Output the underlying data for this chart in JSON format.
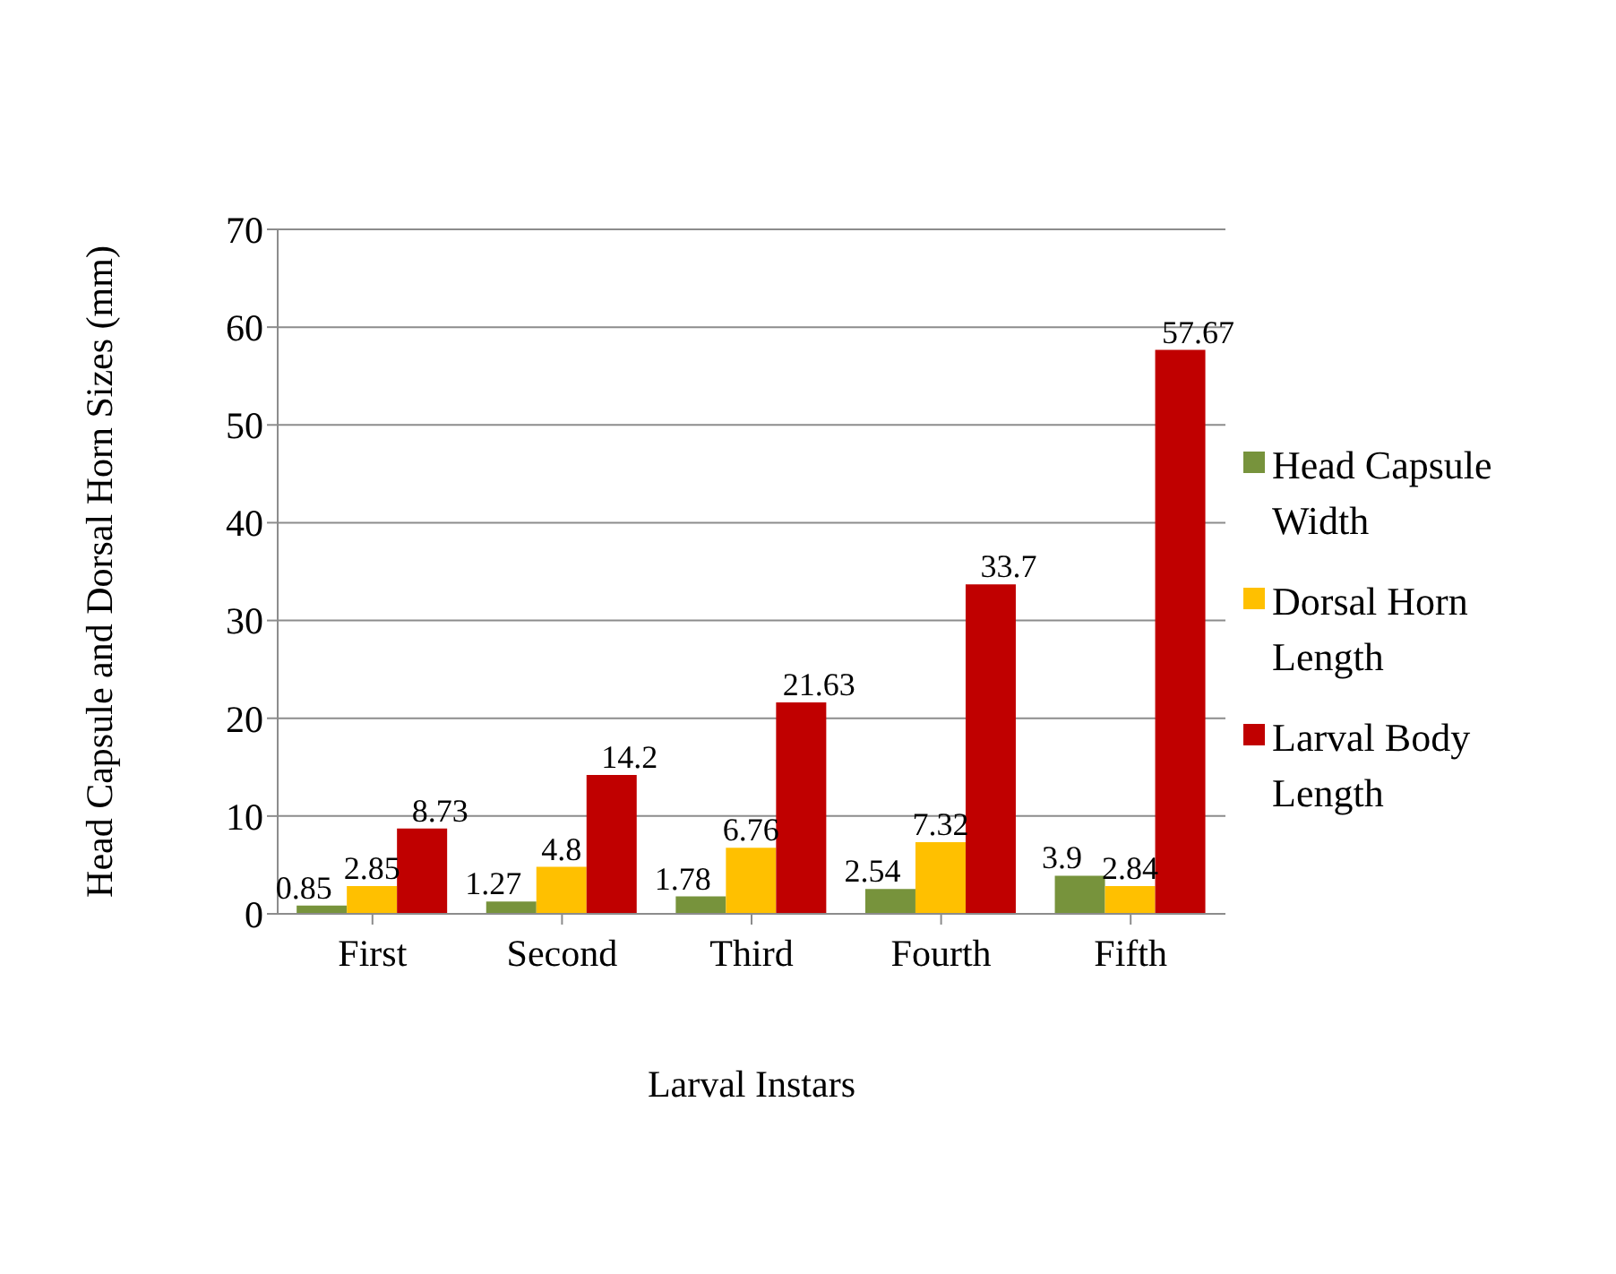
{
  "chart_data": {
    "type": "bar",
    "xlabel": "Larval  Instars",
    "ylabel": "Head Capsule and Dorsal Horn Sizes (mm)",
    "categories": [
      "First",
      "Second",
      "Third",
      "Fourth",
      "Fifth"
    ],
    "series": [
      {
        "name": "Head Capsule Width",
        "color": "#77933c",
        "values": [
          0.85,
          1.27,
          1.78,
          2.54,
          3.9
        ]
      },
      {
        "name": "Dorsal Horn Length",
        "color": "#ffc000",
        "values": [
          2.85,
          4.8,
          6.76,
          7.32,
          2.84
        ]
      },
      {
        "name": "Larval Body Length",
        "color": "#c00000",
        "values": [
          8.73,
          14.2,
          21.63,
          33.7,
          57.67
        ]
      }
    ],
    "ylim": [
      0,
      70
    ],
    "yticks": [
      0,
      10,
      20,
      30,
      40,
      50,
      60,
      70
    ],
    "grid": "y",
    "legend": "right",
    "data_labels": true
  }
}
